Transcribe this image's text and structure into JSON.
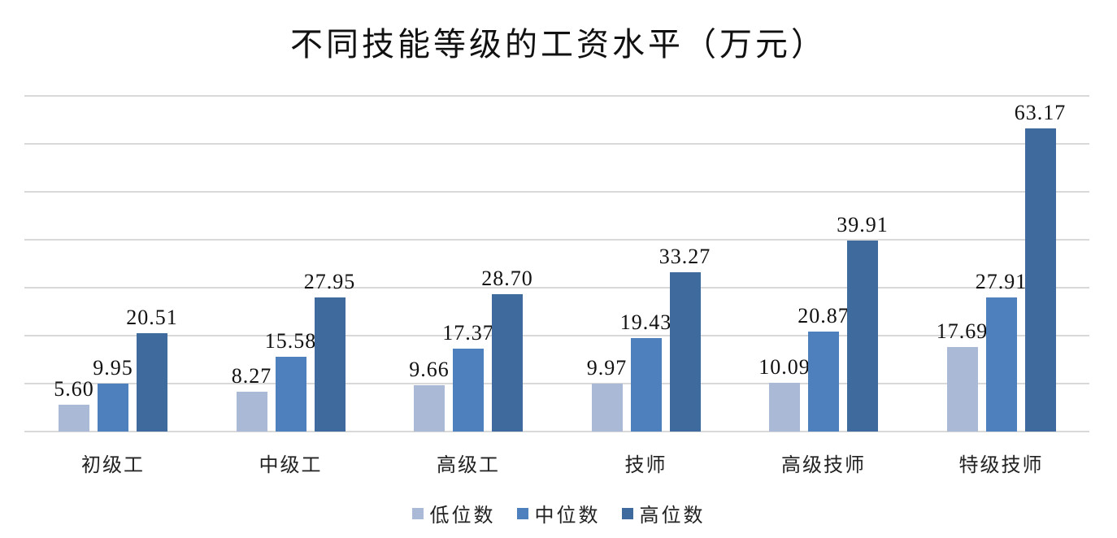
{
  "chart_data": {
    "type": "bar",
    "title": "不同技能等级的工资水平（万元）",
    "xlabel": "",
    "ylabel": "",
    "ylim": [
      0,
      70
    ],
    "grid": true,
    "grid_step": 10,
    "y_tick_labels_visible": false,
    "legend_position": "bottom",
    "categories": [
      "初级工",
      "中级工",
      "高级工",
      "技师",
      "高级技师",
      "特级技师"
    ],
    "series": [
      {
        "name": "低位数",
        "color": "#a9b9d6",
        "values": [
          5.6,
          8.27,
          9.66,
          9.97,
          10.09,
          17.69
        ]
      },
      {
        "name": "中位数",
        "color": "#4e80bd",
        "values": [
          9.95,
          15.58,
          17.37,
          19.43,
          20.87,
          27.91
        ]
      },
      {
        "name": "高位数",
        "color": "#3f6a9d",
        "values": [
          20.51,
          27.95,
          28.7,
          33.27,
          39.91,
          63.17
        ]
      }
    ],
    "data_labels": {
      "低位数": [
        "5.60",
        "8.27",
        "9.66",
        "9.97",
        "10.09",
        "17.69"
      ],
      "中位数": [
        "9.95",
        "15.58",
        "17.37",
        "19.43",
        "20.87",
        "27.91"
      ],
      "高位数": [
        "20.51",
        "27.95",
        "28.70",
        "33.27",
        "39.91",
        "63.17"
      ]
    }
  }
}
